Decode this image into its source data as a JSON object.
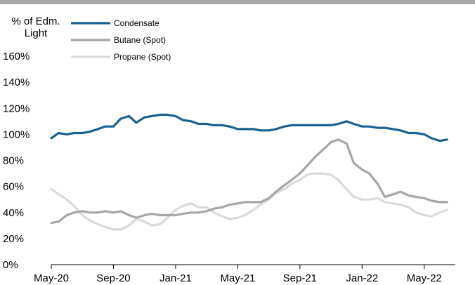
{
  "chart_data": {
    "type": "line",
    "title": "",
    "ylabel": "% of Edm.\nLight",
    "xlabel": "",
    "ylim": [
      0,
      160
    ],
    "yticks": [
      0,
      20,
      40,
      60,
      80,
      100,
      120,
      140,
      160
    ],
    "ytick_labels": [
      "0%",
      "20%",
      "40%",
      "60%",
      "80%",
      "100%",
      "120%",
      "140%",
      "160%"
    ],
    "xticks": [
      "2020-05",
      "2020-09",
      "2021-01",
      "2021-05",
      "2021-09",
      "2022-01",
      "2022-05"
    ],
    "xtick_labels": [
      "May-20",
      "Sep-20",
      "Jan-21",
      "May-21",
      "Sep-21",
      "Jan-22",
      "May-22"
    ],
    "x_range": [
      "2020-05",
      "2022-07"
    ],
    "grid": false,
    "legend_position": "top-left",
    "series": [
      {
        "name": "Condensate",
        "color": "#1a6090",
        "x": [
          "2020-05",
          "2020-05-15",
          "2020-06",
          "2020-06-15",
          "2020-07",
          "2020-07-15",
          "2020-08",
          "2020-08-15",
          "2020-09",
          "2020-09-15",
          "2020-10",
          "2020-10-15",
          "2020-11",
          "2020-11-15",
          "2020-12",
          "2020-12-15",
          "2021-01",
          "2021-01-15",
          "2021-02",
          "2021-02-15",
          "2021-03",
          "2021-03-15",
          "2021-04",
          "2021-04-15",
          "2021-05",
          "2021-05-15",
          "2021-06",
          "2021-06-15",
          "2021-07",
          "2021-07-15",
          "2021-08",
          "2021-08-15",
          "2021-09",
          "2021-09-15",
          "2021-10",
          "2021-10-15",
          "2021-11",
          "2021-11-15",
          "2021-12",
          "2021-12-15",
          "2022-01",
          "2022-01-15",
          "2022-02",
          "2022-02-15",
          "2022-03",
          "2022-03-15",
          "2022-04",
          "2022-04-15",
          "2022-05",
          "2022-05-15",
          "2022-06",
          "2022-06-15"
        ],
        "values": [
          97,
          101,
          100,
          101,
          101,
          102,
          104,
          106,
          106,
          112,
          114,
          109,
          113,
          114,
          115,
          115,
          114,
          111,
          110,
          108,
          108,
          107,
          107,
          106,
          104,
          104,
          104,
          103,
          103,
          104,
          106,
          107,
          107,
          107,
          107,
          107,
          107,
          108,
          110,
          108,
          106,
          106,
          105,
          105,
          104,
          103,
          101,
          101,
          100,
          97,
          95,
          96
        ]
      },
      {
        "name": "Butane (Spot)",
        "color": "#a6a6a6",
        "x": [
          "2020-05",
          "2020-05-15",
          "2020-06",
          "2020-06-15",
          "2020-07",
          "2020-07-15",
          "2020-08",
          "2020-08-15",
          "2020-09",
          "2020-09-15",
          "2020-10",
          "2020-10-15",
          "2020-11",
          "2020-11-15",
          "2020-12",
          "2020-12-15",
          "2021-01",
          "2021-01-15",
          "2021-02",
          "2021-02-15",
          "2021-03",
          "2021-03-15",
          "2021-04",
          "2021-04-15",
          "2021-05",
          "2021-05-15",
          "2021-06",
          "2021-06-15",
          "2021-07",
          "2021-07-15",
          "2021-08",
          "2021-08-15",
          "2021-09",
          "2021-09-15",
          "2021-10",
          "2021-10-15",
          "2021-11",
          "2021-11-15",
          "2021-12",
          "2021-12-15",
          "2022-01",
          "2022-01-15",
          "2022-02",
          "2022-02-15",
          "2022-03",
          "2022-03-15",
          "2022-04",
          "2022-04-15",
          "2022-05",
          "2022-05-15",
          "2022-06",
          "2022-06-15"
        ],
        "values": [
          32,
          33,
          38,
          40,
          41,
          40,
          40,
          41,
          40,
          41,
          38,
          36,
          38,
          39,
          38,
          38,
          38,
          39,
          40,
          40,
          41,
          43,
          44,
          46,
          47,
          48,
          48,
          48,
          51,
          56,
          61,
          65,
          70,
          76,
          83,
          88,
          94,
          96,
          93,
          78,
          73,
          70,
          62,
          52,
          54,
          56,
          53,
          52,
          51,
          49,
          48,
          48
        ]
      },
      {
        "name": "Propane (Spot)",
        "color": "#dadada",
        "x": [
          "2020-05",
          "2020-05-15",
          "2020-06",
          "2020-06-15",
          "2020-07",
          "2020-07-15",
          "2020-08",
          "2020-08-15",
          "2020-09",
          "2020-09-15",
          "2020-10",
          "2020-10-15",
          "2020-11",
          "2020-11-15",
          "2020-12",
          "2020-12-15",
          "2021-01",
          "2021-01-15",
          "2021-02",
          "2021-02-15",
          "2021-03",
          "2021-03-15",
          "2021-04",
          "2021-04-15",
          "2021-05",
          "2021-05-15",
          "2021-06",
          "2021-06-15",
          "2021-07",
          "2021-07-15",
          "2021-08",
          "2021-08-15",
          "2021-09",
          "2021-09-15",
          "2021-10",
          "2021-10-15",
          "2021-11",
          "2021-11-15",
          "2021-12",
          "2021-12-15",
          "2022-01",
          "2022-01-15",
          "2022-02",
          "2022-02-15",
          "2022-03",
          "2022-03-15",
          "2022-04",
          "2022-04-15",
          "2022-05",
          "2022-05-15",
          "2022-06",
          "2022-06-15"
        ],
        "values": [
          58,
          54,
          50,
          45,
          38,
          34,
          31,
          29,
          27,
          27,
          30,
          35,
          33,
          30,
          31,
          36,
          42,
          45,
          47,
          44,
          44,
          40,
          37,
          35,
          36,
          38,
          42,
          46,
          50,
          55,
          58,
          62,
          65,
          69,
          70,
          70,
          69,
          65,
          58,
          52,
          50,
          50,
          51,
          48,
          47,
          46,
          44,
          40,
          38,
          37,
          40,
          42
        ]
      }
    ]
  }
}
